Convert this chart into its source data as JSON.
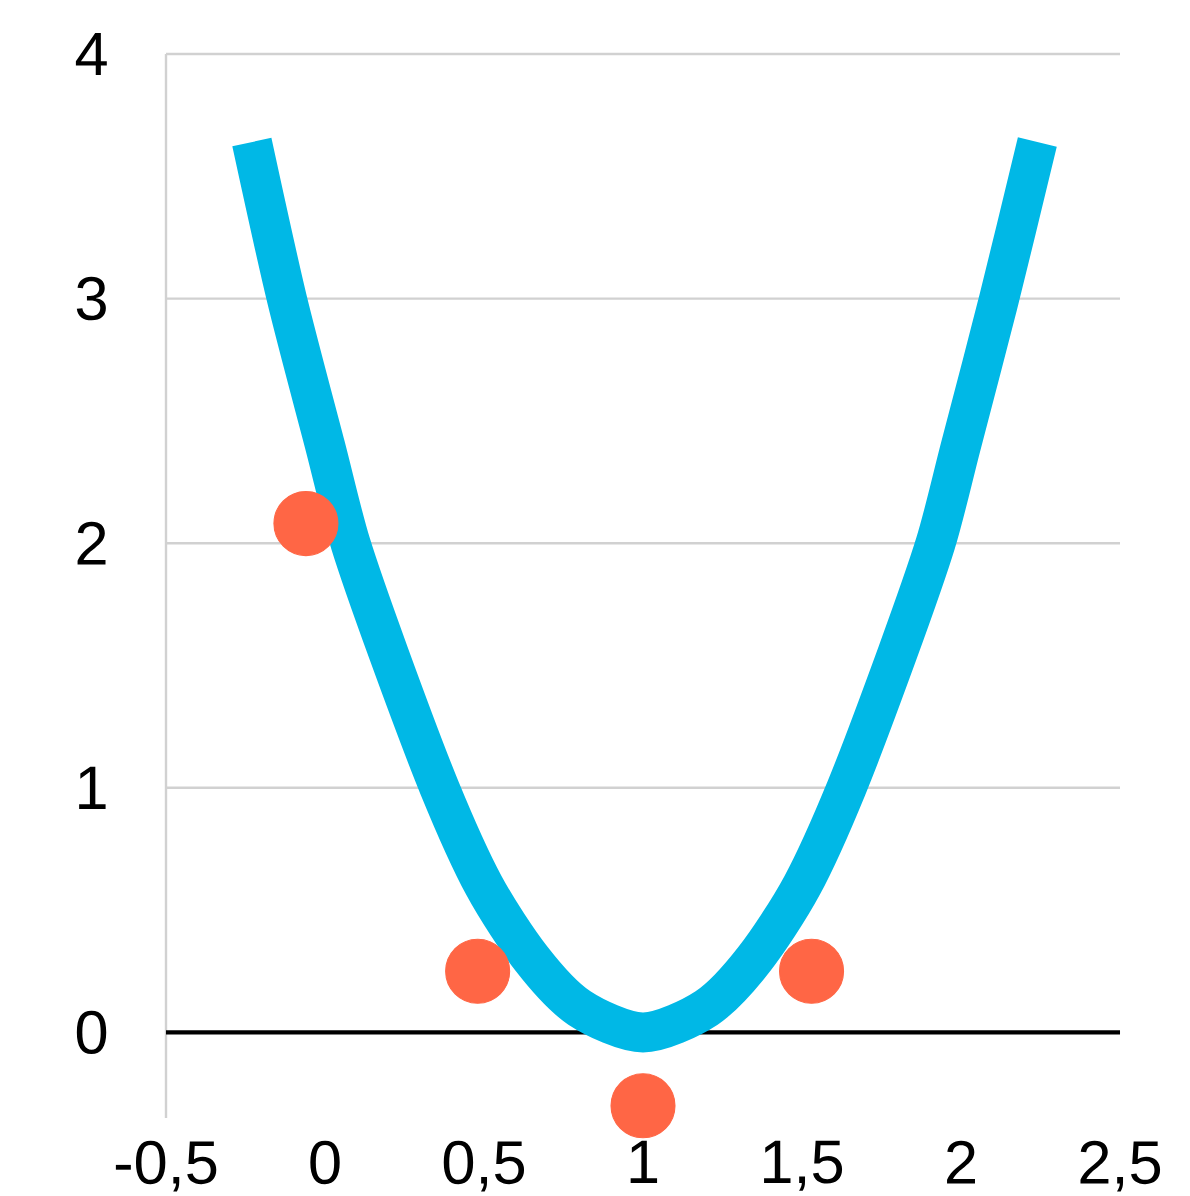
{
  "chart_data": {
    "type": "line",
    "xlim": [
      -0.5,
      2.5
    ],
    "ylim": [
      -0.35,
      4
    ],
    "xticks": [
      {
        "value": -0.5,
        "label": "-0,5"
      },
      0,
      {
        "value": 0.5,
        "label": "0,5"
      },
      1,
      {
        "value": 1.5,
        "label": "1,5"
      },
      2,
      {
        "value": 2.5,
        "label": "2,5"
      }
    ],
    "yticks": [
      0,
      1,
      2,
      3,
      4
    ],
    "grid": "y",
    "series": [
      {
        "type": "line",
        "color": "#00b8e6",
        "marker": "none",
        "line_style": "solid",
        "x": [
          -0.23,
          -0.12,
          0,
          0.08,
          0.2,
          0.36,
          0.5,
          0.65,
          0.8,
          1,
          1.2,
          1.35,
          1.5,
          1.64,
          1.8,
          1.92,
          2,
          2.12,
          2.24
        ],
        "values": [
          3.64,
          3,
          2.4,
          2,
          1.55,
          1,
          0.6,
          0.3,
          0.1,
          0,
          0.1,
          0.3,
          0.6,
          1,
          1.55,
          2,
          2.4,
          3,
          3.64
        ]
      },
      {
        "type": "scatter",
        "color": "#ff6645",
        "marker": "circle",
        "x": [
          -0.06,
          0.48,
          1,
          1.53
        ],
        "values": [
          2.08,
          0.25,
          -0.3,
          0.25
        ]
      }
    ]
  }
}
